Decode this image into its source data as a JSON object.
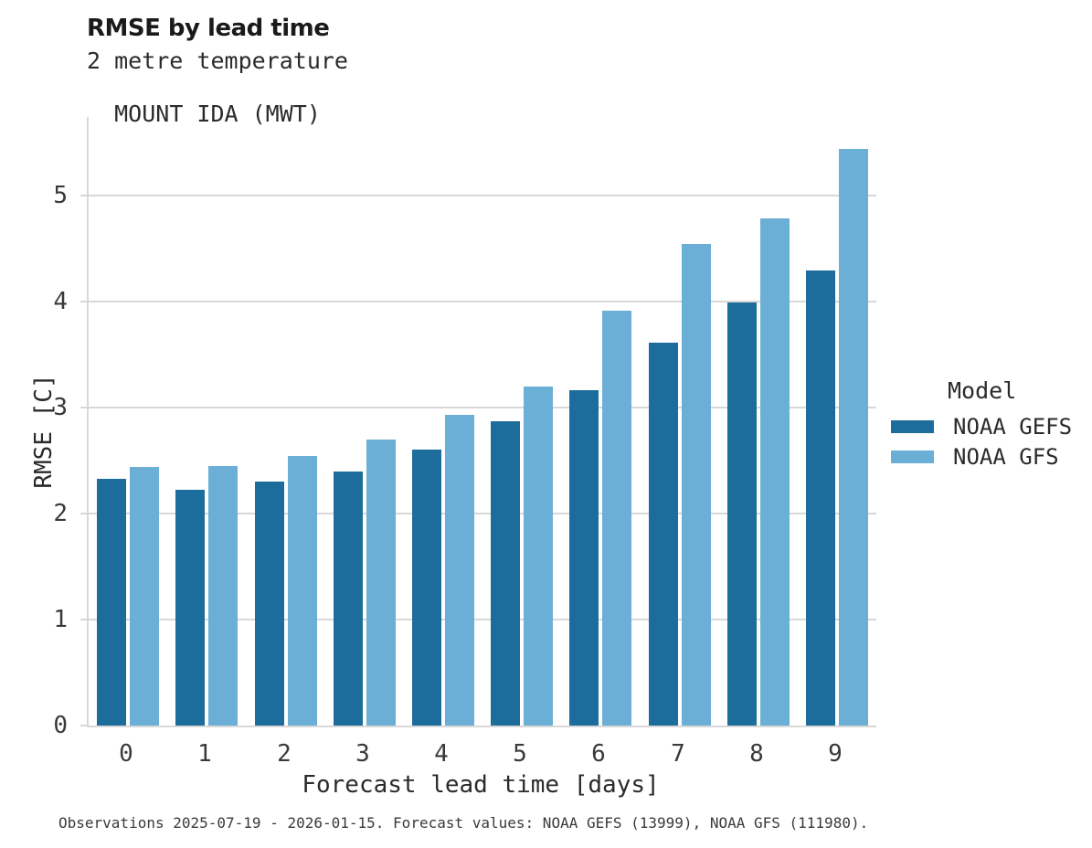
{
  "header": {
    "title": "RMSE by lead time",
    "subtitle_line1": "2 metre temperature",
    "subtitle_line2": "MOUNT IDA (MWT)"
  },
  "caption": "Observations 2025-07-19 - 2026-01-15. Forecast values: NOAA GEFS (13999), NOAA GFS (111980).",
  "legend": {
    "title": "Model"
  },
  "colors": {
    "gefs_bar": "#1d6d9c",
    "gfs_bar": "#6bafd6",
    "axis_grid": "#d8d8d8",
    "text": "#2b2b2b"
  },
  "chart_data": {
    "type": "bar",
    "title": "RMSE by lead time",
    "subtitle": [
      "2 metre temperature",
      "MOUNT IDA (MWT)"
    ],
    "xlabel": "Forecast lead time [days]",
    "ylabel": "RMSE [C]",
    "categories": [
      "0",
      "1",
      "2",
      "3",
      "4",
      "5",
      "6",
      "7",
      "8",
      "9"
    ],
    "series": [
      {
        "name": "NOAA GEFS",
        "color": "#1d6d9c",
        "values": [
          2.33,
          2.22,
          2.3,
          2.4,
          2.6,
          2.87,
          3.16,
          3.61,
          3.99,
          4.29
        ]
      },
      {
        "name": "NOAA GFS",
        "color": "#6bafd6",
        "values": [
          2.44,
          2.45,
          2.54,
          2.7,
          2.93,
          3.2,
          3.91,
          4.54,
          4.78,
          5.44
        ]
      }
    ],
    "ylim": [
      0,
      5.74
    ],
    "yticks": [
      0,
      1,
      2,
      3,
      4,
      5
    ],
    "grid": "horizontal",
    "legend_position": "right",
    "legend_title": "Model"
  }
}
